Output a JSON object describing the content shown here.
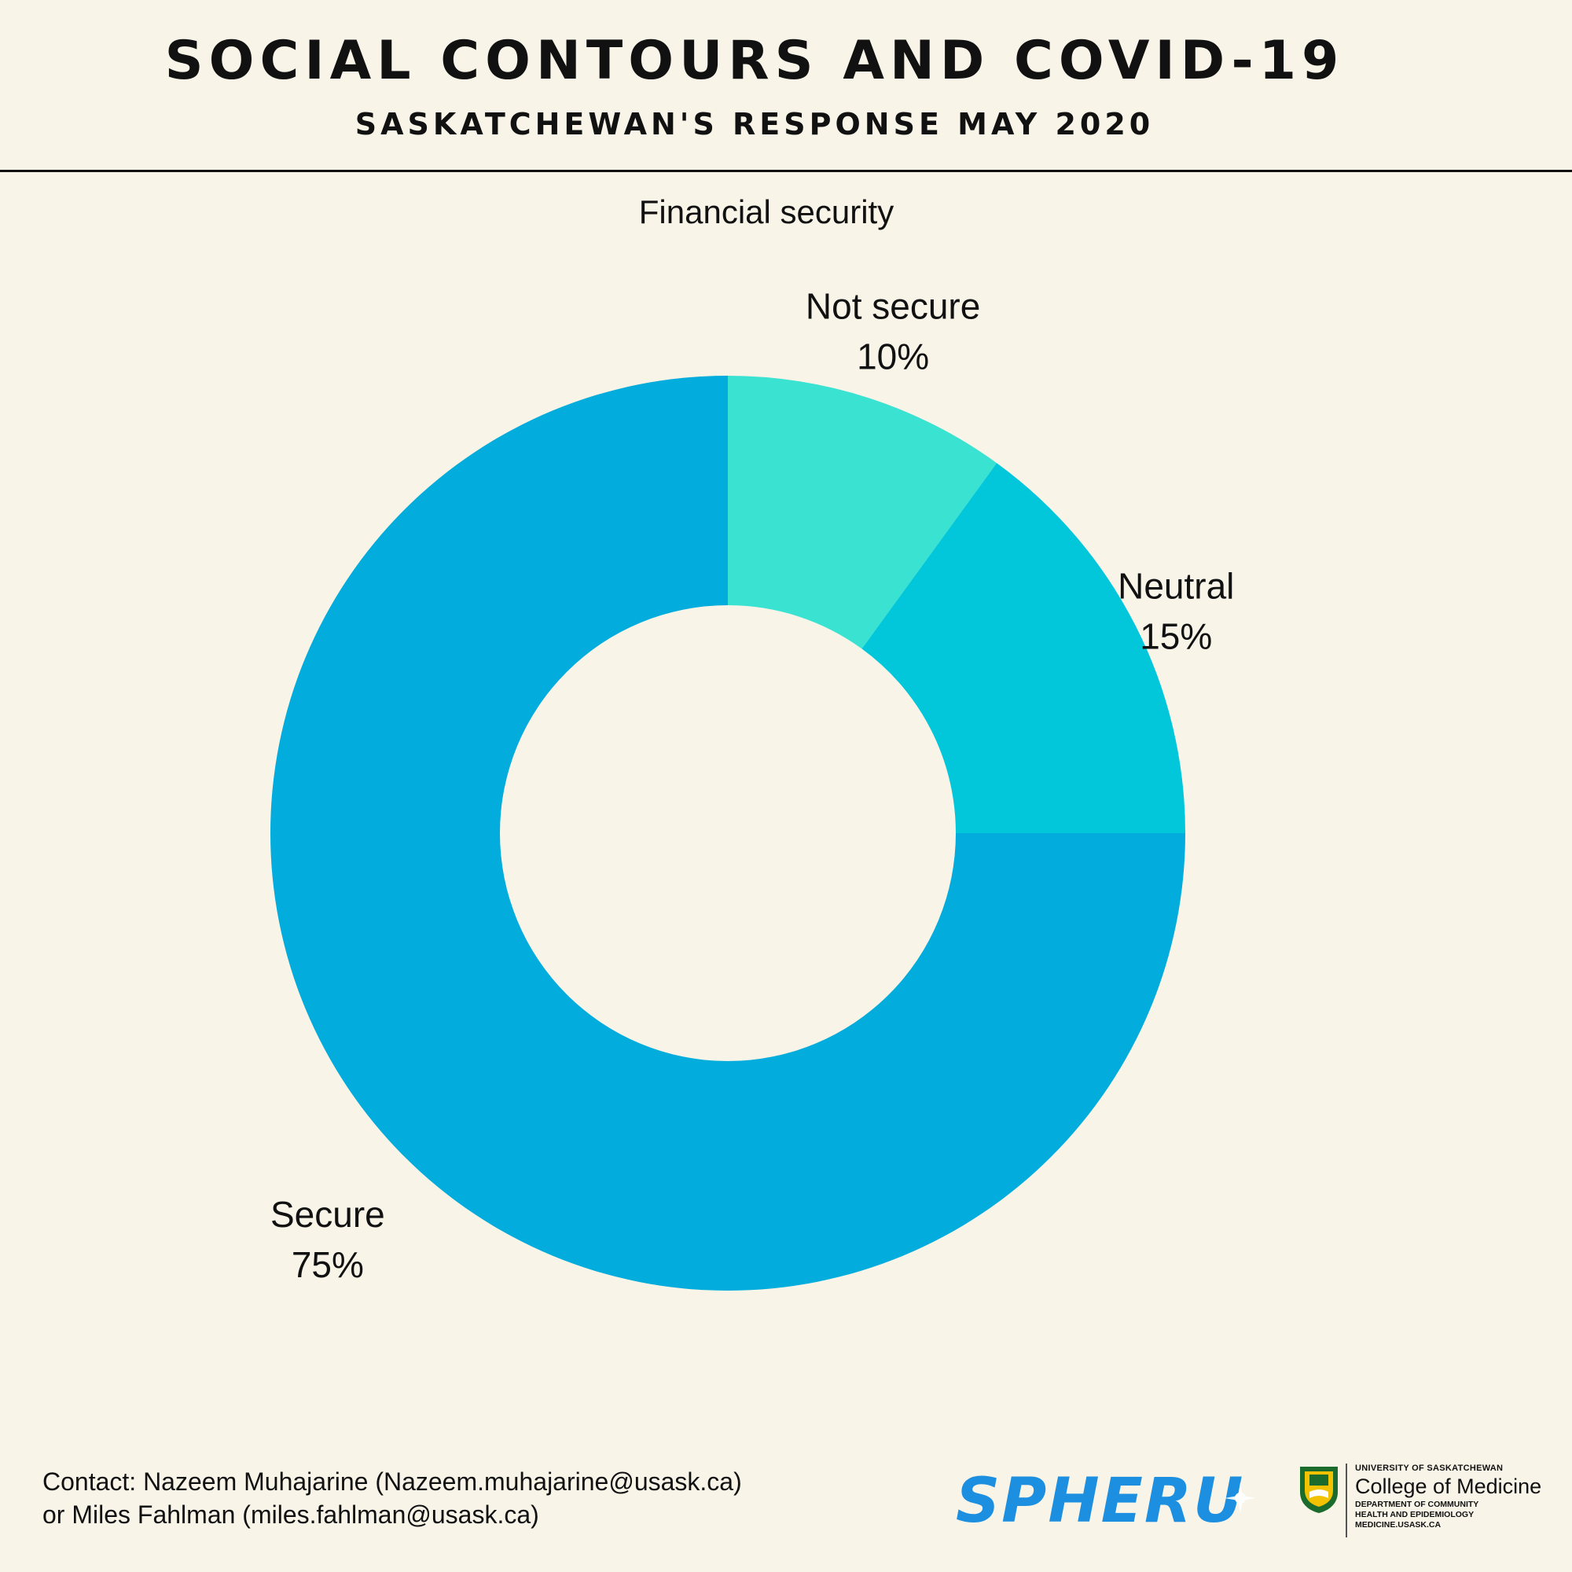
{
  "header": {
    "title": "SOCIAL CONTOURS AND COVID-19",
    "subtitle": "SASKATCHEWAN'S RESPONSE MAY 2020"
  },
  "chart_data": {
    "type": "pie",
    "donut": true,
    "title": "Financial security",
    "categories": [
      "Not secure",
      "Neutral",
      "Secure"
    ],
    "values": [
      10,
      15,
      75
    ],
    "value_labels": [
      "10%",
      "15%",
      "75%"
    ],
    "colors": [
      "#3ae2d2",
      "#02c7db",
      "#02acdc"
    ],
    "start": "top (12 o'clock), clockwise"
  },
  "footer": {
    "contact_line1": "Contact: Nazeem Muhajarine (Nazeem.muhajarine@usask.ca)",
    "contact_line2": "or Miles Fahlman (miles.fahlman@usask.ca)"
  },
  "logos": {
    "spheru": "SPHERU",
    "university": "UNIVERSITY OF SASKATCHEWAN",
    "college": "College of Medicine",
    "dept_line1": "DEPARTMENT OF COMMUNITY",
    "dept_line2": "HEALTH AND EPIDEMIOLOGY",
    "dept_line3": "MEDICINE.USASK.CA"
  }
}
